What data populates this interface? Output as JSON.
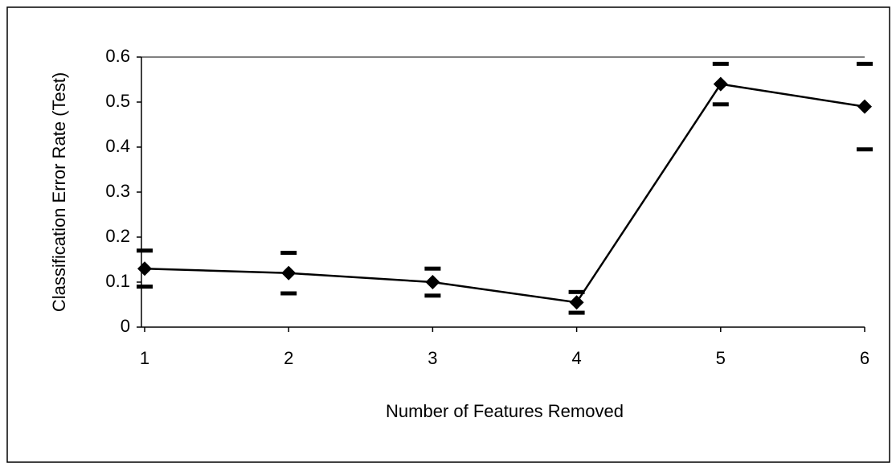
{
  "chart_data": {
    "type": "line",
    "x_label": "Number of Features Removed",
    "y_label": "Classification Error Rate (Test)",
    "x": [
      1,
      2,
      3,
      4,
      5,
      6
    ],
    "series": [
      {
        "color": "#000000",
        "values": [
          0.13,
          0.12,
          0.1,
          0.055,
          0.54,
          0.49
        ],
        "errors": [
          0.04,
          0.045,
          0.03,
          0.023,
          0.045,
          0.095
        ]
      }
    ],
    "xlim": [
      1,
      6
    ],
    "xticks": [
      1,
      2,
      3,
      4,
      5,
      6
    ],
    "ylim": [
      0,
      0.6
    ],
    "yticks": [
      0,
      0.1,
      0.2,
      0.3,
      0.4,
      0.5,
      0.6
    ]
  }
}
